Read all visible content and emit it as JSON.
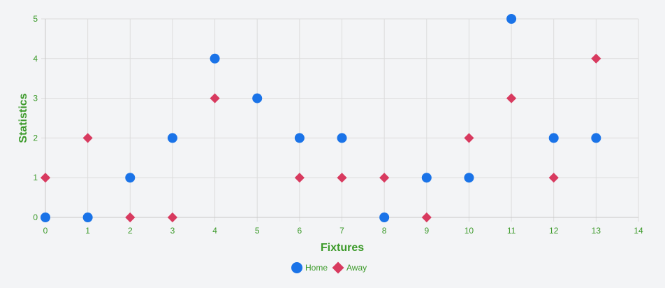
{
  "chart_data": {
    "type": "scatter",
    "xlabel": "Fixtures",
    "ylabel": "Statistics",
    "xlim": [
      0,
      14
    ],
    "ylim": [
      0,
      5
    ],
    "x_ticks": [
      "0",
      "1",
      "2",
      "3",
      "4",
      "5",
      "6",
      "7",
      "8",
      "9",
      "10",
      "11",
      "12",
      "13",
      "14"
    ],
    "y_ticks": [
      "0",
      "1",
      "2",
      "3",
      "4",
      "5"
    ],
    "grid": true,
    "legend_position": "bottom",
    "series": [
      {
        "name": "Home",
        "marker": "circle",
        "color": "#1a73e8",
        "x": [
          0,
          1,
          2,
          3,
          4,
          5,
          6,
          7,
          8,
          9,
          10,
          11,
          12,
          13
        ],
        "y": [
          0,
          0,
          1,
          2,
          4,
          3,
          2,
          2,
          0,
          1,
          1,
          5,
          2,
          2
        ]
      },
      {
        "name": "Away",
        "marker": "diamond",
        "color": "#d83a5f",
        "x": [
          0,
          1,
          2,
          3,
          4,
          5,
          6,
          7,
          8,
          9,
          10,
          11,
          12,
          13
        ],
        "y": [
          1,
          2,
          0,
          0,
          3,
          3,
          1,
          1,
          1,
          0,
          2,
          3,
          1,
          4
        ]
      }
    ]
  }
}
